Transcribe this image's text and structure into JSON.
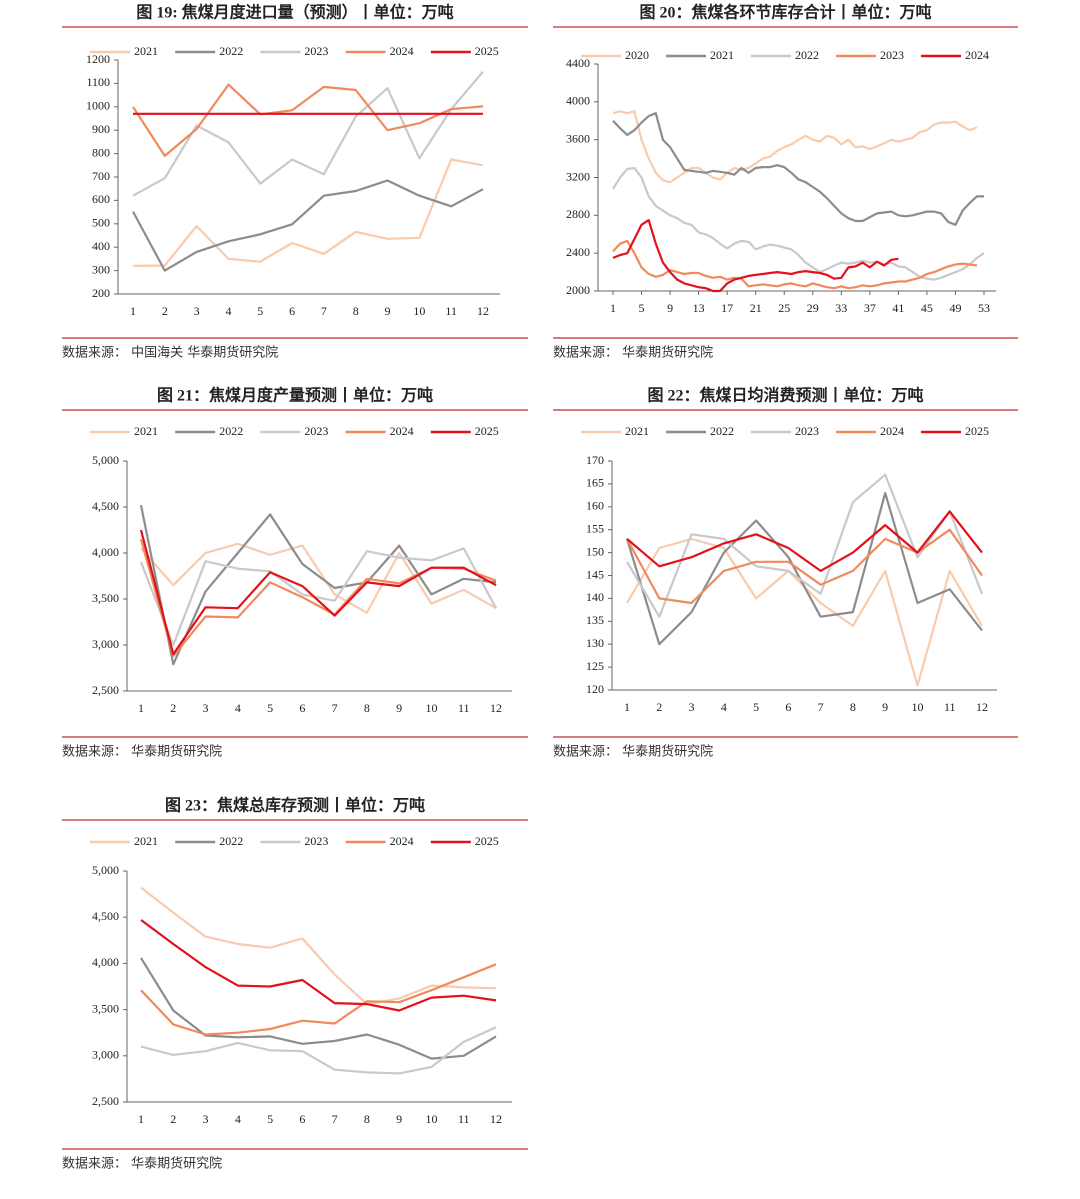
{
  "chart_data": [
    {
      "type": "line",
      "title": "图 19: 焦煤月度进口量（预测）丨单位：万吨",
      "source": "数据来源： 中国海关  华泰期货研究院",
      "categories": [
        "1",
        "2",
        "3",
        "4",
        "5",
        "6",
        "7",
        "8",
        "9",
        "10",
        "11",
        "12"
      ],
      "ylim": [
        200,
        1200
      ],
      "yticks": [
        200,
        300,
        400,
        500,
        600,
        700,
        800,
        900,
        1000,
        1100,
        1200
      ],
      "grid": false,
      "legend": "top",
      "series": [
        {
          "name": "2021",
          "color": "#f8cbad",
          "values": [
            320,
            322,
            490,
            350,
            338,
            418,
            372,
            466,
            436,
            440,
            775,
            750
          ]
        },
        {
          "name": "2022",
          "color": "#8c8c8c",
          "values": [
            552,
            300,
            380,
            425,
            455,
            498,
            620,
            640,
            685,
            620,
            575,
            648
          ]
        },
        {
          "name": "2023",
          "color": "#c9c9c9",
          "values": [
            620,
            695,
            920,
            848,
            672,
            775,
            712,
            958,
            1080,
            780,
            990,
            1150
          ]
        },
        {
          "name": "2024",
          "color": "#f08a5d",
          "values": [
            1000,
            790,
            905,
            1095,
            968,
            985,
            1085,
            1072,
            900,
            930,
            990,
            1002
          ]
        },
        {
          "name": "2025",
          "color": "#e3111c",
          "values": [
            970,
            970,
            970,
            970,
            970,
            970,
            970,
            970,
            970,
            970,
            970,
            970
          ]
        }
      ]
    },
    {
      "type": "line",
      "title": "图 20：焦煤各环节库存合计丨单位：万吨",
      "source": "数据来源： 华泰期货研究院",
      "x": [
        1,
        2,
        3,
        4,
        5,
        6,
        7,
        8,
        9,
        10,
        11,
        12,
        13,
        14,
        15,
        16,
        17,
        18,
        19,
        20,
        21,
        22,
        23,
        24,
        25,
        26,
        27,
        28,
        29,
        30,
        31,
        32,
        33,
        34,
        35,
        36,
        37,
        38,
        39,
        40,
        41,
        42,
        43,
        44,
        45,
        46,
        47,
        48,
        49,
        50,
        51,
        52,
        53
      ],
      "xlim": [
        1,
        53
      ],
      "xticks": [
        1,
        5,
        9,
        13,
        17,
        21,
        25,
        29,
        33,
        37,
        41,
        45,
        49,
        53
      ],
      "ylim": [
        2000,
        4400
      ],
      "yticks": [
        2000,
        2400,
        2800,
        3200,
        3600,
        4000,
        4400
      ],
      "grid": false,
      "legend": "top",
      "series": [
        {
          "name": "2020",
          "color": "#f8cbad",
          "values": [
            3880,
            3900,
            3880,
            3900,
            3600,
            3400,
            3250,
            3170,
            3150,
            3200,
            3250,
            3300,
            3300,
            3250,
            3200,
            3180,
            3250,
            3300,
            3280,
            3300,
            3350,
            3400,
            3420,
            3480,
            3520,
            3550,
            3600,
            3640,
            3600,
            3580,
            3640,
            3620,
            3550,
            3600,
            3520,
            3530,
            3500,
            3530,
            3560,
            3600,
            3580,
            3600,
            3620,
            3680,
            3700,
            3760,
            3780,
            3780,
            3790,
            3740,
            3700,
            3730,
            null
          ]
        },
        {
          "name": "2021",
          "color": "#8c8c8c",
          "values": [
            3800,
            3720,
            3650,
            3700,
            3780,
            3850,
            3880,
            3600,
            3520,
            3400,
            3280,
            3270,
            3260,
            3250,
            3270,
            3260,
            3250,
            3230,
            3300,
            3250,
            3300,
            3310,
            3310,
            3330,
            3310,
            3250,
            3180,
            3150,
            3100,
            3050,
            2980,
            2900,
            2820,
            2770,
            2740,
            2740,
            2780,
            2820,
            2830,
            2840,
            2800,
            2790,
            2800,
            2820,
            2840,
            2840,
            2820,
            2730,
            2700,
            2850,
            2930,
            3000,
            3000
          ]
        },
        {
          "name": "2022",
          "color": "#c9c9c9",
          "values": [
            3080,
            3200,
            3290,
            3300,
            3200,
            3000,
            2900,
            2850,
            2800,
            2770,
            2720,
            2700,
            2620,
            2600,
            2560,
            2500,
            2450,
            2500,
            2530,
            2520,
            2440,
            2470,
            2490,
            2480,
            2460,
            2440,
            2380,
            2300,
            2250,
            2200,
            2230,
            2270,
            2300,
            2290,
            2300,
            2320,
            2300,
            2310,
            2280,
            2300,
            2260,
            2250,
            2200,
            2150,
            2130,
            2120,
            2140,
            2170,
            2200,
            2230,
            2280,
            2350,
            2400
          ]
        },
        {
          "name": "2023",
          "color": "#f08a5d",
          "values": [
            2420,
            2500,
            2530,
            2400,
            2250,
            2180,
            2150,
            2170,
            2220,
            2200,
            2180,
            2190,
            2190,
            2160,
            2140,
            2150,
            2120,
            2140,
            2130,
            2050,
            2060,
            2070,
            2060,
            2050,
            2070,
            2080,
            2060,
            2050,
            2080,
            2060,
            2040,
            2030,
            2050,
            2030,
            2040,
            2060,
            2050,
            2060,
            2080,
            2090,
            2100,
            2100,
            2120,
            2140,
            2180,
            2200,
            2230,
            2260,
            2280,
            2290,
            2280,
            2270,
            null
          ]
        },
        {
          "name": "2024",
          "color": "#e3111c",
          "values": [
            2350,
            2380,
            2400,
            2550,
            2700,
            2750,
            2500,
            2300,
            2200,
            2120,
            2080,
            2060,
            2040,
            2030,
            2000,
            2000,
            2080,
            2120,
            2140,
            2160,
            2170,
            2180,
            2190,
            2200,
            2190,
            2180,
            2200,
            2210,
            2200,
            2190,
            2170,
            2130,
            2140,
            2250,
            2260,
            2300,
            2250,
            2310,
            2270,
            2330,
            2340,
            null,
            null,
            null,
            null,
            null,
            null,
            null,
            null,
            null,
            null,
            null,
            null
          ]
        }
      ]
    },
    {
      "type": "line",
      "title": "图 21：焦煤月度产量预测丨单位：万吨",
      "source": "数据来源： 华泰期货研究院",
      "categories": [
        "1",
        "2",
        "3",
        "4",
        "5",
        "6",
        "7",
        "8",
        "9",
        "10",
        "11",
        "12"
      ],
      "ylim": [
        2500,
        5000
      ],
      "yticks": [
        {
          "value": 2500,
          "label": "2,500"
        },
        {
          "value": 3000,
          "label": "3,000"
        },
        {
          "value": 3500,
          "label": "3,500"
        },
        {
          "value": 4000,
          "label": "4,000"
        },
        {
          "value": 4500,
          "label": "4,500"
        },
        {
          "value": 5000,
          "label": "5,000"
        }
      ],
      "grid": false,
      "legend": "top",
      "series": [
        {
          "name": "2021",
          "color": "#f8cbad",
          "values": [
            4050,
            3650,
            4000,
            4100,
            3980,
            4080,
            3550,
            3350,
            4000,
            3450,
            3600,
            3400
          ]
        },
        {
          "name": "2022",
          "color": "#8c8c8c",
          "values": [
            4520,
            2790,
            3580,
            4000,
            4420,
            3880,
            3620,
            3680,
            4080,
            3550,
            3720,
            3680
          ]
        },
        {
          "name": "2023",
          "color": "#c9c9c9",
          "values": [
            3900,
            3000,
            3910,
            3830,
            3800,
            3550,
            3480,
            4020,
            3950,
            3920,
            4050,
            3400
          ]
        },
        {
          "name": "2024",
          "color": "#f08a5d",
          "values": [
            4150,
            2880,
            3310,
            3300,
            3680,
            3520,
            3330,
            3720,
            3670,
            3840,
            3830,
            3700
          ]
        },
        {
          "name": "2025",
          "color": "#e3111c",
          "values": [
            4250,
            2900,
            3410,
            3400,
            3790,
            3640,
            3320,
            3680,
            3640,
            3840,
            3840,
            3650
          ]
        }
      ]
    },
    {
      "type": "line",
      "title": "图 22：焦煤日均消费预测丨单位：万吨",
      "source": "数据来源： 华泰期货研究院",
      "categories": [
        "1",
        "2",
        "3",
        "4",
        "5",
        "6",
        "7",
        "8",
        "9",
        "10",
        "11",
        "12"
      ],
      "ylim": [
        120,
        170
      ],
      "yticks": [
        120,
        125,
        130,
        135,
        140,
        145,
        150,
        155,
        160,
        165,
        170
      ],
      "grid": false,
      "legend": "top",
      "series": [
        {
          "name": "2021",
          "color": "#f8cbad",
          "values": [
            139,
            151,
            153,
            151,
            140,
            146,
            139,
            134,
            146,
            121,
            146,
            134
          ]
        },
        {
          "name": "2022",
          "color": "#8c8c8c",
          "values": [
            153,
            130,
            137,
            150,
            157,
            149,
            136,
            137,
            163,
            139,
            142,
            133
          ]
        },
        {
          "name": "2023",
          "color": "#c9c9c9",
          "values": [
            148,
            136,
            154,
            153,
            147,
            146,
            141,
            161,
            167,
            149,
            159,
            141
          ]
        },
        {
          "name": "2024",
          "color": "#f08a5d",
          "values": [
            153,
            140,
            139,
            146,
            148,
            148,
            143,
            146,
            153,
            150,
            155,
            145
          ]
        },
        {
          "name": "2025",
          "color": "#e3111c",
          "values": [
            153,
            147,
            149,
            152,
            154,
            151,
            146,
            150,
            156,
            150,
            159,
            150
          ]
        }
      ]
    },
    {
      "type": "line",
      "title": "图 23：焦煤总库存预测丨单位：万吨",
      "source": "数据来源： 华泰期货研究院",
      "categories": [
        "1",
        "2",
        "3",
        "4",
        "5",
        "6",
        "7",
        "8",
        "9",
        "10",
        "11",
        "12"
      ],
      "ylim": [
        2500,
        5000
      ],
      "yticks": [
        {
          "value": 2500,
          "label": "2,500"
        },
        {
          "value": 3000,
          "label": "3,000"
        },
        {
          "value": 3500,
          "label": "3,500"
        },
        {
          "value": 4000,
          "label": "4,000"
        },
        {
          "value": 4500,
          "label": "4,500"
        },
        {
          "value": 5000,
          "label": "5,000"
        }
      ],
      "grid": false,
      "legend": "top",
      "series": [
        {
          "name": "2021",
          "color": "#f8cbad",
          "values": [
            4820,
            4550,
            4290,
            4210,
            4170,
            4270,
            3880,
            3560,
            3620,
            3760,
            3740,
            3730
          ]
        },
        {
          "name": "2022",
          "color": "#8c8c8c",
          "values": [
            4060,
            3490,
            3220,
            3200,
            3210,
            3130,
            3160,
            3230,
            3120,
            2970,
            3000,
            3210
          ]
        },
        {
          "name": "2023",
          "color": "#c9c9c9",
          "values": [
            3100,
            3010,
            3050,
            3140,
            3060,
            3050,
            2850,
            2820,
            2810,
            2880,
            3150,
            3310
          ]
        },
        {
          "name": "2024",
          "color": "#f08a5d",
          "values": [
            3710,
            3340,
            3230,
            3250,
            3290,
            3380,
            3350,
            3590,
            3580,
            3710,
            3850,
            3990
          ]
        },
        {
          "name": "2025",
          "color": "#e3111c",
          "values": [
            4470,
            4210,
            3960,
            3760,
            3750,
            3820,
            3570,
            3560,
            3490,
            3630,
            3650,
            3600
          ]
        }
      ]
    }
  ]
}
